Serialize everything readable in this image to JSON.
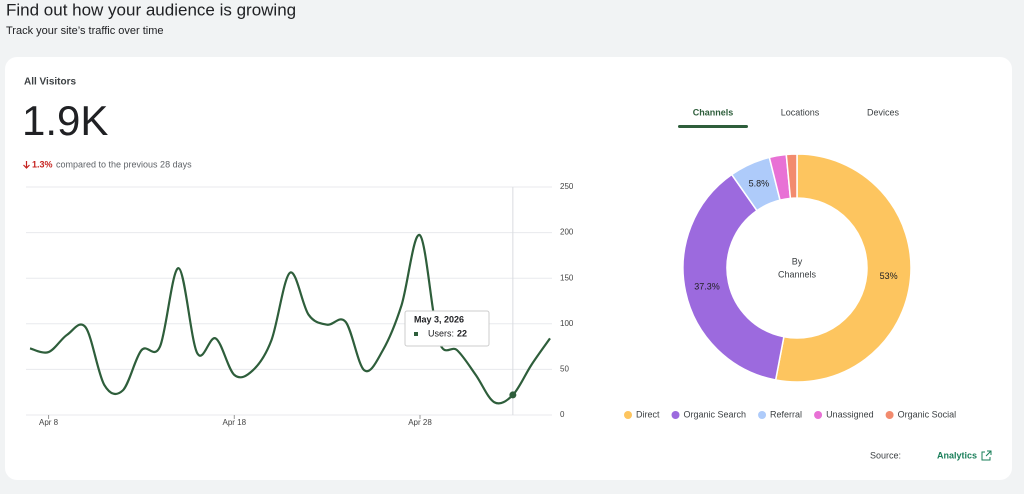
{
  "header": {
    "title": "Find out how your audience is growing",
    "subtitle": "Track your site’s traffic over time"
  },
  "summary": {
    "label": "All Visitors",
    "value": "1.9K",
    "change": "1.3%",
    "comparison": "compared to the previous 28 days"
  },
  "tabs": [
    "Channels",
    "Locations",
    "Devices"
  ],
  "tooltip": {
    "date": "May 3, 2026",
    "label": "Users:",
    "index": 26
  },
  "source": {
    "label": "Source:",
    "link": "Analytics"
  },
  "chart_data": [
    {
      "type": "line",
      "categories": [
        null,
        "Apr 8",
        null,
        null,
        null,
        null,
        null,
        null,
        null,
        null,
        null,
        "Apr 18",
        null,
        null,
        null,
        null,
        null,
        null,
        null,
        null,
        null,
        "Apr 28",
        null,
        null,
        null,
        null,
        null,
        null,
        null
      ],
      "series": [
        {
          "name": "Users",
          "color": "#2e5e3b",
          "values": [
            73,
            69,
            88,
            96,
            33,
            27,
            71,
            75,
            161,
            68,
            84,
            44,
            49,
            82,
            156,
            110,
            99,
            102,
            49,
            71,
            120,
            197,
            82,
            71,
            44,
            14,
            22,
            55,
            84
          ]
        }
      ],
      "ylim": [
        0,
        250
      ],
      "yticks": [
        0,
        50,
        100,
        150,
        200,
        250
      ],
      "grid": true
    },
    {
      "type": "pie",
      "center_label": [
        "By",
        "Channels"
      ],
      "categories": [
        "Direct",
        "Organic Search",
        "Referral",
        "Unassigned",
        "Organic Social"
      ],
      "values": [
        53,
        37.3,
        5.8,
        2.4,
        1.5
      ],
      "value_labels": [
        "53%",
        "37.3%",
        "5.8%",
        null,
        null
      ],
      "colors": [
        "#fdc55f",
        "#9c6ade",
        "#aecbfa",
        "#e871d5",
        "#f28b6e"
      ],
      "legend": "bottom"
    }
  ]
}
